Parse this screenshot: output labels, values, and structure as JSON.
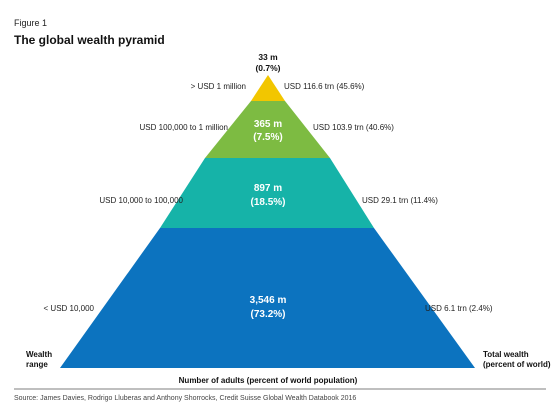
{
  "figure_label": "Figure 1",
  "title": "The global wealth pyramid",
  "colors": {
    "tier_1": "#f2c600",
    "tier_2": "#7dbb42",
    "tier_3": "#16b3a8",
    "tier_4": "#0c73bf",
    "text_on_dark": "#ffffff",
    "rule": "#555555"
  },
  "tiers": [
    {
      "wealth_range": "> USD 1 million",
      "adults": "33 m",
      "share": "(0.7%)",
      "total_wealth": "USD 116.6 trn (45.6%)"
    },
    {
      "wealth_range": "USD 100,000 to 1 million",
      "adults": "365 m",
      "share": "(7.5%)",
      "total_wealth": "USD 103.9 trn (40.6%)"
    },
    {
      "wealth_range": "USD 10,000 to 100,000",
      "adults": "897 m",
      "share": "(18.5%)",
      "total_wealth": "USD 29.1 trn (11.4%)"
    },
    {
      "wealth_range": "< USD 10,000",
      "adults": "3,546 m",
      "share": "(73.2%)",
      "total_wealth": "USD 6.1 trn (2.4%)"
    }
  ],
  "left_axis_label": [
    "Wealth",
    "range"
  ],
  "right_axis_label": [
    "Total wealth",
    "(percent of world)"
  ],
  "bottom_label": "Number of adults (percent of world population)",
  "source": "Source: James Davies, Rodrigo Lluberas and Anthony Shorrocks, Credit Suisse Global Wealth Databook 2016"
}
